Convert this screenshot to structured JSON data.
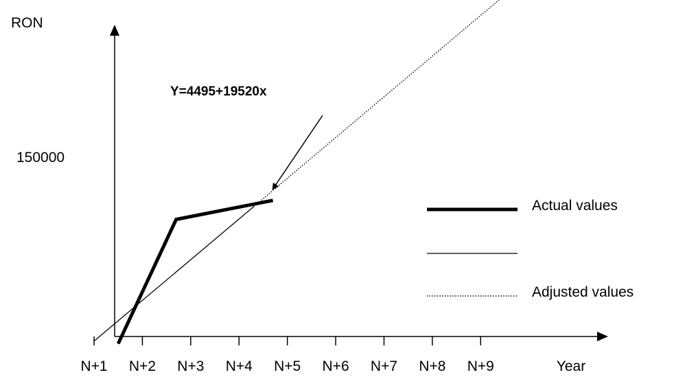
{
  "chart_data": {
    "type": "line",
    "title": "",
    "ylabel": "RON",
    "xlabel": "Year",
    "categories": [
      "N+1",
      "N+2",
      "N+3",
      "N+4",
      "N+5",
      "N+6",
      "N+7",
      "N+8",
      "N+9"
    ],
    "x_range": [
      0.9,
      10.7
    ],
    "y_range": [
      0,
      260000
    ],
    "y_tick_labels": [
      {
        "label": "150000",
        "value": 150000
      }
    ],
    "series": [
      {
        "name": "Actual values",
        "style": "thick solid",
        "color": "#000000",
        "points": [
          {
            "x": 1.5,
            "y": 3000
          },
          {
            "x": 2.7,
            "y": 101000
          },
          {
            "x": 4.7,
            "y": 116000
          }
        ]
      },
      {
        "name": "",
        "style": "thin solid",
        "color": "#000000",
        "points": [
          {
            "x": 1.0,
            "y": 5000
          },
          {
            "x": 4.3,
            "y": 111000
          }
        ]
      },
      {
        "name": "Adjusted values",
        "style": "dotted",
        "color": "#000000",
        "points": [
          {
            "x": 4.3,
            "y": 111000
          },
          {
            "x": 9.5,
            "y": 278000
          }
        ]
      }
    ],
    "annotation": {
      "text": "Y=4495+19520x",
      "points_to": {
        "x": 4.7,
        "y": 125000
      }
    },
    "legend": {
      "placement": "right",
      "entries": [
        {
          "label": "Actual values",
          "style": "thick solid"
        },
        {
          "label": "",
          "style": "thin solid"
        },
        {
          "label": "Adjusted values",
          "style": "dotted"
        }
      ]
    },
    "grid": false
  }
}
